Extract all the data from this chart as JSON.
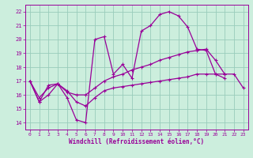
{
  "xlabel": "Windchill (Refroidissement éolien,°C)",
  "background_color": "#cceedd",
  "grid_color": "#99ccbb",
  "line_color": "#990099",
  "xlim": [
    -0.5,
    23.5
  ],
  "ylim": [
    13.5,
    22.5
  ],
  "yticks": [
    14,
    15,
    16,
    17,
    18,
    19,
    20,
    21,
    22
  ],
  "xticks": [
    0,
    1,
    2,
    3,
    4,
    5,
    6,
    7,
    8,
    9,
    10,
    11,
    12,
    13,
    14,
    15,
    16,
    17,
    18,
    19,
    20,
    21,
    22,
    23
  ],
  "curve1_x": [
    0,
    1,
    2,
    3,
    4,
    5,
    6,
    7,
    8,
    9,
    10,
    11,
    12,
    13,
    14,
    15,
    16,
    17,
    18,
    19,
    20,
    21,
    22,
    23
  ],
  "curve1_y": [
    17.0,
    15.5,
    16.7,
    16.8,
    15.8,
    14.2,
    14.0,
    20.0,
    20.2,
    17.5,
    18.2,
    17.2,
    20.6,
    21.0,
    21.8,
    22.0,
    21.7,
    20.9,
    19.3,
    19.2,
    17.5,
    17.5,
    null,
    null
  ],
  "curve2_x": [
    0,
    1,
    2,
    3,
    4,
    5,
    6,
    7,
    8,
    9,
    10,
    11,
    12,
    13,
    14,
    15,
    16,
    17,
    18,
    19,
    20,
    21,
    22,
    23
  ],
  "curve2_y": [
    17.0,
    15.5,
    16.0,
    16.8,
    16.2,
    16.0,
    16.0,
    16.5,
    17.0,
    17.3,
    17.5,
    17.8,
    18.0,
    18.2,
    18.5,
    18.7,
    18.9,
    19.1,
    19.2,
    19.3,
    18.5,
    17.5,
    17.5,
    16.5
  ],
  "curve3_x": [
    0,
    1,
    2,
    3,
    4,
    5,
    6,
    7,
    8,
    9,
    10,
    11,
    12,
    13,
    14,
    15,
    16,
    17,
    18,
    19,
    20,
    21,
    22,
    23
  ],
  "curve3_y": [
    17.0,
    15.8,
    16.5,
    16.8,
    16.3,
    15.5,
    15.2,
    15.8,
    16.3,
    16.5,
    16.6,
    16.7,
    16.8,
    16.9,
    17.0,
    17.1,
    17.2,
    17.3,
    17.5,
    17.5,
    17.5,
    17.2,
    null,
    null
  ]
}
